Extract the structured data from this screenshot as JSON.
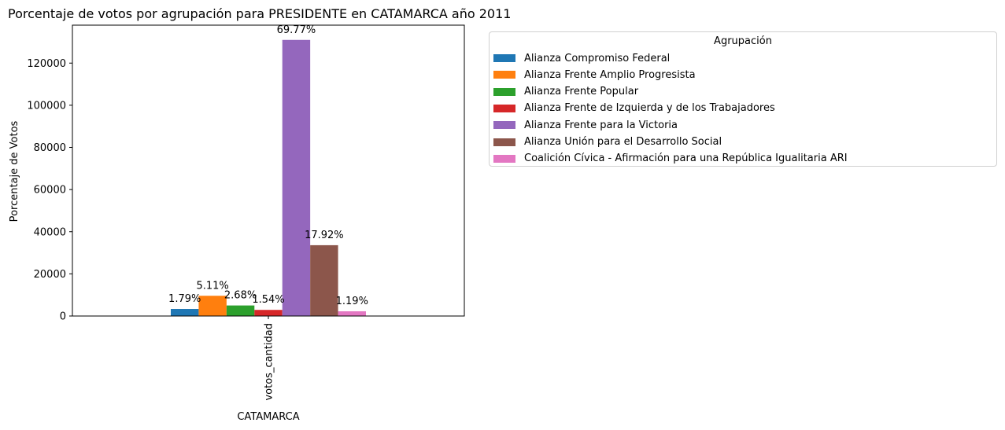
{
  "chart_data": {
    "type": "bar",
    "title": "Porcentaje de votos por agrupación para PRESIDENTE en CATAMARCA año 2011",
    "xlabel": "CATAMARCA",
    "ylabel": "Porcentaje de Votos",
    "categories": [
      "votos_cantidad"
    ],
    "ylim": [
      0,
      138000
    ],
    "yticks": [
      "0",
      "20000",
      "40000",
      "60000",
      "80000",
      "100000",
      "120000"
    ],
    "grid": false,
    "legend_title": "Agrupación",
    "legend_placement": "outside-top-right",
    "series": [
      {
        "name": "Alianza Compromiso Federal",
        "values": [
          3350
        ],
        "label": "1.79%",
        "color": "#1f77b4"
      },
      {
        "name": "Alianza Frente Amplio Progresista",
        "values": [
          9600
        ],
        "label": "5.11%",
        "color": "#ff7f0e"
      },
      {
        "name": "Alianza Frente Popular",
        "values": [
          5000
        ],
        "label": "2.68%",
        "color": "#2ca02c"
      },
      {
        "name": "Alianza Frente de Izquierda y de los Trabajadores",
        "values": [
          2900
        ],
        "label": "1.54%",
        "color": "#d62728"
      },
      {
        "name": "Alianza Frente para la Victoria",
        "values": [
          131000
        ],
        "label": "69.77%",
        "color": "#9467bd"
      },
      {
        "name": "Alianza Unión para el Desarrollo Social",
        "values": [
          33600
        ],
        "label": "17.92%",
        "color": "#8c564b"
      },
      {
        "name": "Coalición Cívica - Afirmación para una República Igualitaria ARI",
        "values": [
          2250
        ],
        "label": "1.19%",
        "color": "#e377c2"
      }
    ]
  }
}
